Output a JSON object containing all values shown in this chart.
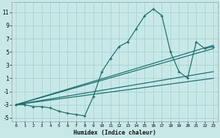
{
  "xlabel": "Humidex (Indice chaleur)",
  "ylabel": "",
  "background_color": "#c8e8e8",
  "grid_color": "#aad4d4",
  "line_color": "#1a6b6b",
  "xlim": [
    -0.5,
    23.5
  ],
  "ylim": [
    -5.5,
    12.5
  ],
  "xticks": [
    0,
    1,
    2,
    3,
    4,
    5,
    6,
    7,
    8,
    9,
    10,
    11,
    12,
    13,
    14,
    15,
    16,
    17,
    18,
    19,
    20,
    21,
    22,
    23
  ],
  "yticks": [
    -5,
    -3,
    -1,
    1,
    3,
    5,
    7,
    9,
    11
  ],
  "series": [
    {
      "x": [
        0,
        1,
        2,
        3,
        4,
        5,
        6,
        7,
        8,
        9,
        10,
        11,
        12,
        13,
        14,
        15,
        16,
        17,
        18,
        19,
        20,
        21,
        22,
        23
      ],
      "y": [
        -3,
        -3,
        -3.3,
        -3.3,
        -3.5,
        -4.0,
        -4.3,
        -4.5,
        -4.7,
        -1.8,
        2.0,
        4.0,
        5.8,
        6.5,
        8.5,
        10.5,
        11.5,
        10.5,
        5.0,
        2.0,
        1.0,
        6.5,
        5.5,
        5.8
      ]
    },
    {
      "x": [
        0,
        23
      ],
      "y": [
        -3,
        6.0
      ]
    },
    {
      "x": [
        0,
        23
      ],
      "y": [
        -3,
        5.5
      ]
    },
    {
      "x": [
        0,
        23
      ],
      "y": [
        -3,
        2.0
      ]
    },
    {
      "x": [
        0,
        23
      ],
      "y": [
        -3,
        1.0
      ]
    }
  ]
}
